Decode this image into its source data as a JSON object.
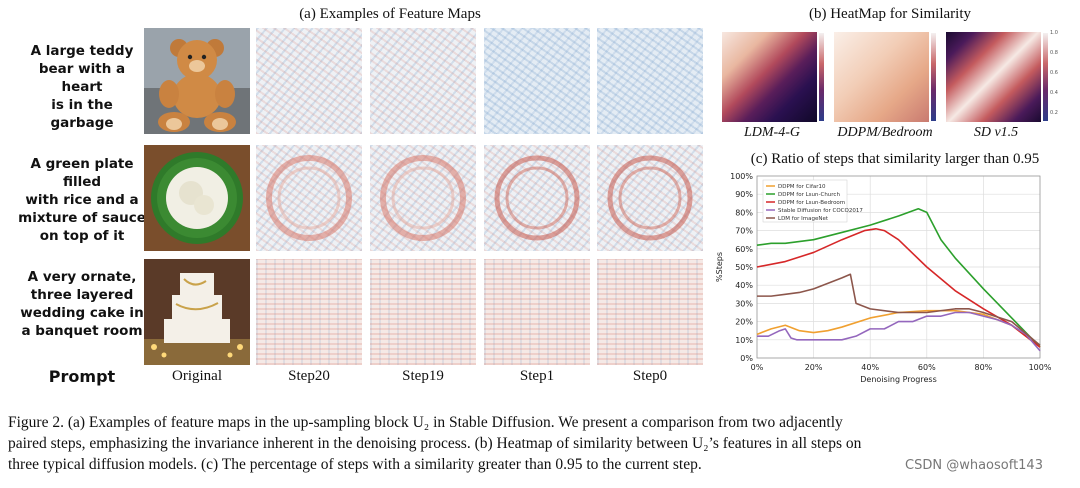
{
  "panel_a": {
    "title": "(a) Examples of Feature Maps",
    "prompts": [
      [
        "A large teddy",
        "bear with a heart",
        "is in the garbage"
      ],
      [
        "A green plate filled",
        "with rice and a",
        "mixture of sauce",
        "on top of it"
      ],
      [
        "A very ornate,",
        "three layered",
        "wedding cake in",
        "a banquet room"
      ]
    ],
    "prompt_label": "Prompt",
    "columns": [
      "Original",
      "Step20",
      "Step19",
      "Step1",
      "Step0"
    ]
  },
  "panel_b": {
    "title": "(b) HeatMap for Similarity",
    "maps": [
      {
        "label": "LDM-4-G"
      },
      {
        "label": "DDPM/Bedroom"
      },
      {
        "label": "SD v1.5"
      }
    ],
    "colorbar_ticks": [
      "1.0",
      "0.8",
      "0.6",
      "0.4",
      "0.2"
    ]
  },
  "panel_c": {
    "title": "(c) Ratio of steps that similarity larger than 0.95"
  },
  "chart_data": {
    "type": "line",
    "title": "(c) Ratio of steps that similarity larger than 0.95",
    "xlabel": "Denoising Progress",
    "ylabel": "%Steps",
    "xlim": [
      0,
      100
    ],
    "ylim": [
      0,
      100
    ],
    "x_ticks": [
      "0%",
      "20%",
      "40%",
      "60%",
      "80%",
      "100%"
    ],
    "y_ticks": [
      "0%",
      "10%",
      "20%",
      "30%",
      "40%",
      "50%",
      "60%",
      "70%",
      "80%",
      "90%",
      "100%"
    ],
    "grid": true,
    "legend_position": "top-left",
    "series": [
      {
        "name": "DDPM for Cifar10",
        "color": "#f0a030",
        "x": [
          0,
          5,
          10,
          15,
          20,
          25,
          30,
          40,
          50,
          60,
          70,
          80,
          90,
          100
        ],
        "y": [
          13,
          16,
          18,
          15,
          14,
          15,
          17,
          22,
          25,
          26,
          26,
          24,
          18,
          6
        ]
      },
      {
        "name": "DDPM for Lsun-Church",
        "color": "#2ca02c",
        "x": [
          0,
          5,
          10,
          20,
          30,
          40,
          50,
          57,
          60,
          65,
          70,
          80,
          90,
          100
        ],
        "y": [
          62,
          63,
          63,
          65,
          69,
          73,
          78,
          82,
          80,
          65,
          55,
          38,
          22,
          6
        ]
      },
      {
        "name": "DDPM for Lsun-Bedroom",
        "color": "#d62728",
        "x": [
          0,
          10,
          20,
          30,
          38,
          42,
          45,
          50,
          60,
          70,
          80,
          90,
          100
        ],
        "y": [
          50,
          53,
          58,
          65,
          70,
          71,
          70,
          65,
          50,
          37,
          27,
          18,
          6
        ]
      },
      {
        "name": "Stable Diffusion for COCO2017",
        "color": "#9467bd",
        "x": [
          0,
          4,
          8,
          10,
          12,
          14,
          16,
          18,
          20,
          25,
          30,
          35,
          40,
          45,
          50,
          55,
          60,
          65,
          70,
          75,
          80,
          85,
          90,
          95,
          100
        ],
        "y": [
          12,
          12,
          15,
          16,
          11,
          10,
          10,
          10,
          10,
          10,
          10,
          12,
          16,
          16,
          20,
          20,
          23,
          23,
          25,
          25,
          23,
          21,
          18,
          13,
          4
        ]
      },
      {
        "name": "LDM for ImageNet",
        "color": "#8c564b",
        "x": [
          0,
          5,
          10,
          15,
          20,
          25,
          30,
          33,
          35,
          40,
          50,
          60,
          70,
          75,
          80,
          90,
          100
        ],
        "y": [
          34,
          34,
          35,
          36,
          38,
          41,
          44,
          46,
          30,
          27,
          25,
          25,
          27,
          27,
          25,
          20,
          7
        ]
      }
    ]
  },
  "caption": {
    "lines": [
      "Figure 2. (a) Examples of feature maps in the up-sampling block U₂ in Stable Diffusion. We present a comparison from two adjacently",
      "paired steps, emphasizing the invariance inherent in the denoising process. (b) Heatmap of similarity between U₂’s features in all steps on",
      "three typical diffusion models. (c) The percentage of steps with a similarity greater than 0.95 to the current step."
    ],
    "watermark": "CSDN @whaosoft143"
  }
}
